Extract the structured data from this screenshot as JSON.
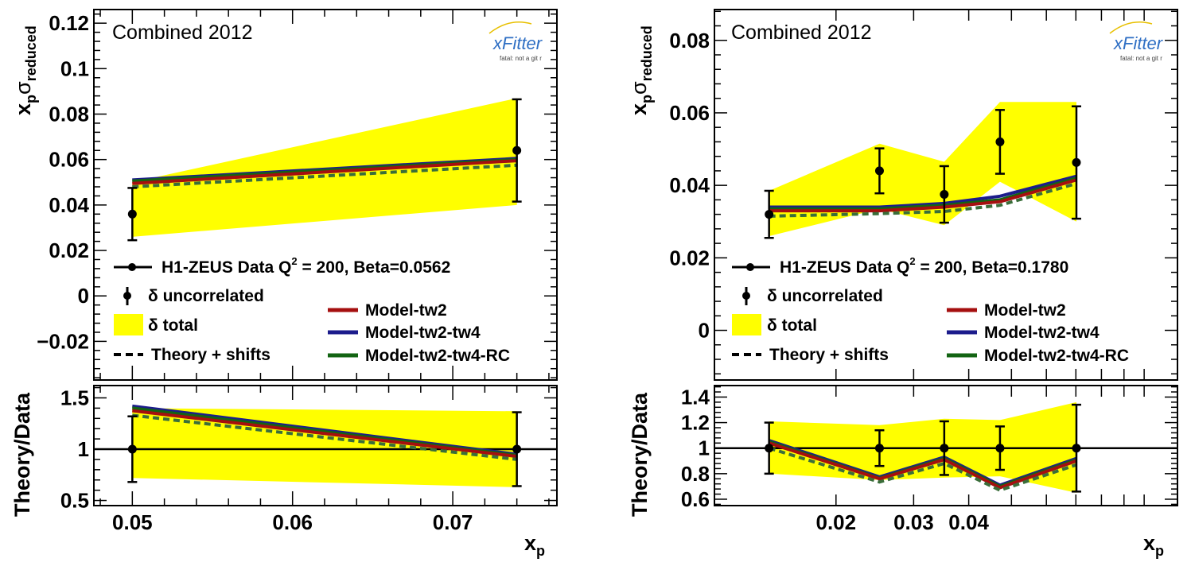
{
  "panels": [
    {
      "top_ylabel": "x_p σ_reduced",
      "top_ylabel_sub1": "p",
      "top_ylabel_sub2": "reduced",
      "bottom_ylabel": "Theory/Data",
      "xlabel": "x",
      "xlabel_sub": "p",
      "header": "Combined 2012",
      "logo_text": "xFitter",
      "logo_sub": "fatal: not a git r",
      "legend": {
        "data_prefix": "H1-ZEUS Data Q",
        "data_sup": "2",
        "data_suffix": " = 200, Beta=0.0562",
        "uncorrelated": "δ uncorrelated",
        "total": "δ total",
        "theory_shifts": "Theory + shifts",
        "models": [
          "Model-tw2",
          "Model-tw2-tw4",
          "Model-tw2-tw4-RC"
        ]
      },
      "colors": {
        "band": "#ffff00",
        "tw2": "#a50f0f",
        "tw2tw4": "#1c1c8c",
        "rc": "#136413"
      }
    },
    {
      "top_ylabel": "x_p σ_reduced",
      "top_ylabel_sub1": "p",
      "top_ylabel_sub2": "reduced",
      "bottom_ylabel": "Theory/Data",
      "xlabel": "x",
      "xlabel_sub": "p",
      "header": "Combined 2012",
      "logo_text": "xFitter",
      "logo_sub": "fatal: not a git r",
      "legend": {
        "data_prefix": "H1-ZEUS Data Q",
        "data_sup": "2",
        "data_suffix": " = 200, Beta=0.1780",
        "uncorrelated": "δ uncorrelated",
        "total": "δ total",
        "theory_shifts": "Theory + shifts",
        "models": [
          "Model-tw2",
          "Model-tw2-tw4",
          "Model-tw2-tw4-RC"
        ]
      },
      "colors": {
        "band": "#ffff00",
        "tw2": "#a50f0f",
        "tw2tw4": "#1c1c8c",
        "rc": "#136413"
      }
    }
  ],
  "chart_data": [
    {
      "type": "line",
      "panel": "left-top",
      "x_scale": "linear",
      "xlim": [
        0.0476,
        0.0765
      ],
      "ylim": [
        -0.037,
        0.126
      ],
      "x_ticks": [
        "0.05",
        "0.06",
        "0.07"
      ],
      "y_ticks": [
        "−0.02",
        "0",
        "0.02",
        "0.04",
        "0.06",
        "0.08",
        "0.1",
        "0.12"
      ],
      "data": {
        "x": [
          0.05,
          0.074
        ],
        "y": [
          0.036,
          0.064
        ],
        "err": [
          0.0115,
          0.0225
        ]
      },
      "band": {
        "x": [
          0.05,
          0.074
        ],
        "low": [
          0.026,
          0.04
        ],
        "high": [
          0.05,
          0.087
        ]
      },
      "series": [
        {
          "name": "Model-tw2",
          "values": [
            0.0495,
            0.0595
          ]
        },
        {
          "name": "Model-tw2-tw4",
          "values": [
            0.051,
            0.0605
          ]
        },
        {
          "name": "Model-tw2-tw4-RC",
          "values": [
            0.0505,
            0.06
          ]
        },
        {
          "name": "Theory + shifts",
          "values": [
            0.048,
            0.0575
          ]
        }
      ]
    },
    {
      "type": "line",
      "panel": "left-ratio",
      "x_scale": "linear",
      "xlim": [
        0.0476,
        0.0765
      ],
      "ylim": [
        0.45,
        1.62
      ],
      "y_ticks": [
        "0.5",
        "1",
        "1.5"
      ],
      "data": {
        "x": [
          0.05,
          0.074
        ],
        "y": [
          1,
          1
        ],
        "err": [
          0.32,
          0.36
        ]
      },
      "band": {
        "x": [
          0.05,
          0.074
        ],
        "low": [
          0.72,
          0.63
        ],
        "high": [
          1.4,
          1.37
        ]
      },
      "series": [
        {
          "name": "Model-tw2",
          "values": [
            1.375,
            0.93
          ]
        },
        {
          "name": "Model-tw2-tw4",
          "values": [
            1.42,
            0.95
          ]
        },
        {
          "name": "Model-tw2-tw4-RC",
          "values": [
            1.4,
            0.94
          ]
        },
        {
          "name": "Theory + shifts",
          "values": [
            1.33,
            0.9
          ]
        }
      ]
    },
    {
      "type": "line",
      "panel": "right-top",
      "x_scale": "log",
      "xlim": [
        0.0106,
        0.119
      ],
      "ylim": [
        -0.0137,
        0.0885
      ],
      "x_ticks": [
        "0.02",
        "0.03",
        "0.04"
      ],
      "y_ticks": [
        "0",
        "0.02",
        "0.04",
        "0.06",
        "0.08"
      ],
      "data": {
        "x": [
          0.0141,
          0.0251,
          0.0352,
          0.0471,
          0.0702
        ],
        "y": [
          0.032,
          0.044,
          0.0375,
          0.052,
          0.0463
        ],
        "err": [
          0.0065,
          0.0062,
          0.0078,
          0.0088,
          0.0155
        ]
      },
      "band": {
        "x": [
          0.0141,
          0.0251,
          0.0352,
          0.0471,
          0.0702
        ],
        "low": [
          0.026,
          0.0335,
          0.029,
          0.041,
          0.03
        ],
        "high": [
          0.0385,
          0.0515,
          0.0465,
          0.063,
          0.063
        ]
      },
      "series": [
        {
          "name": "Model-tw2",
          "values": [
            0.033,
            0.033,
            0.034,
            0.0355,
            0.0415
          ]
        },
        {
          "name": "Model-tw2-tw4",
          "values": [
            0.034,
            0.034,
            0.035,
            0.037,
            0.0425
          ]
        },
        {
          "name": "Model-tw2-tw4-RC",
          "values": [
            0.0335,
            0.0335,
            0.0345,
            0.036,
            0.042
          ]
        },
        {
          "name": "Theory + shifts",
          "values": [
            0.0315,
            0.0322,
            0.0328,
            0.0345,
            0.0405
          ]
        }
      ]
    },
    {
      "type": "line",
      "panel": "right-ratio",
      "x_scale": "log",
      "xlim": [
        0.0106,
        0.119
      ],
      "ylim": [
        0.55,
        1.49
      ],
      "y_ticks": [
        "0.6",
        "0.8",
        "1",
        "1.2",
        "1.4"
      ],
      "data": {
        "x": [
          0.0141,
          0.0251,
          0.0352,
          0.0471,
          0.0702
        ],
        "y": [
          1,
          1,
          1,
          1,
          1
        ],
        "err": [
          0.2,
          0.14,
          0.21,
          0.17,
          0.34
        ]
      },
      "band": {
        "x": [
          0.0141,
          0.0251,
          0.0352,
          0.0471,
          0.0702
        ],
        "low": [
          0.8,
          0.75,
          0.77,
          0.78,
          0.65
        ],
        "high": [
          1.21,
          1.18,
          1.23,
          1.22,
          1.36
        ]
      },
      "series": [
        {
          "name": "Model-tw2",
          "values": [
            1.04,
            0.76,
            0.91,
            0.69,
            0.9
          ]
        },
        {
          "name": "Model-tw2-tw4",
          "values": [
            1.06,
            0.775,
            0.93,
            0.71,
            0.92
          ]
        },
        {
          "name": "Model-tw2-tw4-RC",
          "values": [
            1.05,
            0.765,
            0.92,
            0.7,
            0.91
          ]
        },
        {
          "name": "Theory + shifts",
          "values": [
            1.0,
            0.735,
            0.88,
            0.67,
            0.87
          ]
        }
      ]
    }
  ]
}
